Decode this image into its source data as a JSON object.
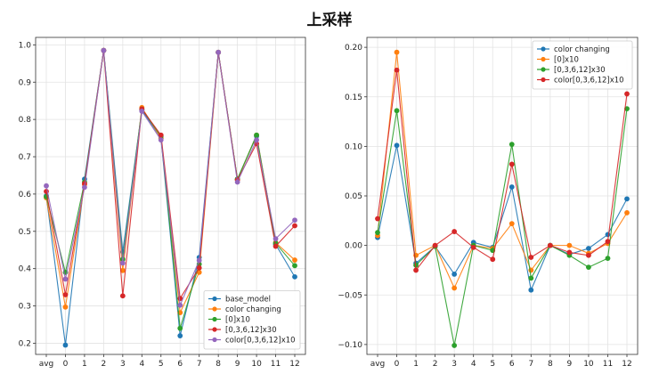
{
  "title": "上采样",
  "chart_data": [
    {
      "type": "line",
      "categories": [
        "avg",
        "0",
        "1",
        "2",
        "3",
        "4",
        "5",
        "6",
        "7",
        "8",
        "9",
        "10",
        "11",
        "12"
      ],
      "ylim": [
        0.17,
        1.02
      ],
      "yticks": [
        "0.2",
        "0.3",
        "0.4",
        "0.5",
        "0.6",
        "0.7",
        "0.8",
        "0.9",
        "1.0"
      ],
      "grid": true,
      "legend_position": "lower-right",
      "series": [
        {
          "name": "base_model",
          "color": "#1f77b4",
          "values": [
            0.595,
            0.195,
            0.64,
            0.985,
            0.445,
            0.825,
            0.75,
            0.22,
            0.43,
            0.98,
            0.64,
            0.755,
            0.465,
            0.378
          ]
        },
        {
          "name": "color changing",
          "color": "#ff7f0e",
          "values": [
            0.59,
            0.297,
            0.625,
            0.985,
            0.395,
            0.832,
            0.75,
            0.282,
            0.39,
            0.98,
            0.638,
            0.758,
            0.47,
            0.423
          ]
        },
        {
          "name": "[0]x10",
          "color": "#2ca02c",
          "values": [
            0.593,
            0.39,
            0.632,
            0.985,
            0.425,
            0.828,
            0.755,
            0.24,
            0.412,
            0.98,
            0.64,
            0.758,
            0.468,
            0.408
          ]
        },
        {
          "name": "[0,3,6,12]x30",
          "color": "#d62728",
          "values": [
            0.607,
            0.33,
            0.628,
            0.985,
            0.327,
            0.828,
            0.758,
            0.32,
            0.402,
            0.98,
            0.638,
            0.735,
            0.46,
            0.515
          ]
        },
        {
          "name": "color[0,3,6,12]x10",
          "color": "#9467bd",
          "values": [
            0.622,
            0.372,
            0.618,
            0.985,
            0.415,
            0.822,
            0.745,
            0.302,
            0.422,
            0.98,
            0.632,
            0.745,
            0.48,
            0.53
          ]
        }
      ]
    },
    {
      "type": "line",
      "categories": [
        "avg",
        "0",
        "1",
        "2",
        "3",
        "4",
        "5",
        "6",
        "7",
        "8",
        "9",
        "10",
        "11",
        "12"
      ],
      "ylim": [
        -0.11,
        0.21
      ],
      "yticks": [
        "−0.10",
        "−0.05",
        "0.00",
        "0.05",
        "0.10",
        "0.15",
        "0.20"
      ],
      "grid": true,
      "legend_position": "top-right",
      "series": [
        {
          "name": "color changing",
          "color": "#1f77b4",
          "values": [
            0.008,
            0.101,
            -0.018,
            -0.001,
            -0.029,
            0.003,
            -0.002,
            0.059,
            -0.045,
            0.0,
            -0.009,
            -0.003,
            0.011,
            0.047
          ]
        },
        {
          "name": "[0]x10",
          "color": "#ff7f0e",
          "values": [
            0.01,
            0.195,
            -0.01,
            0.0,
            -0.043,
            0.0,
            -0.003,
            0.022,
            -0.025,
            0.0,
            0.0,
            -0.008,
            0.002,
            0.033
          ]
        },
        {
          "name": "[0,3,6,12]x30",
          "color": "#2ca02c",
          "values": [
            0.013,
            0.136,
            -0.02,
            -0.001,
            -0.101,
            0.0,
            -0.005,
            0.102,
            -0.033,
            0.0,
            -0.01,
            -0.022,
            -0.013,
            0.138
          ]
        },
        {
          "name": "color[0,3,6,12]x10",
          "color": "#d62728",
          "values": [
            0.027,
            0.177,
            -0.025,
            0.0,
            0.014,
            -0.002,
            -0.014,
            0.082,
            -0.012,
            0.0,
            -0.007,
            -0.01,
            0.004,
            0.153
          ]
        }
      ]
    }
  ]
}
